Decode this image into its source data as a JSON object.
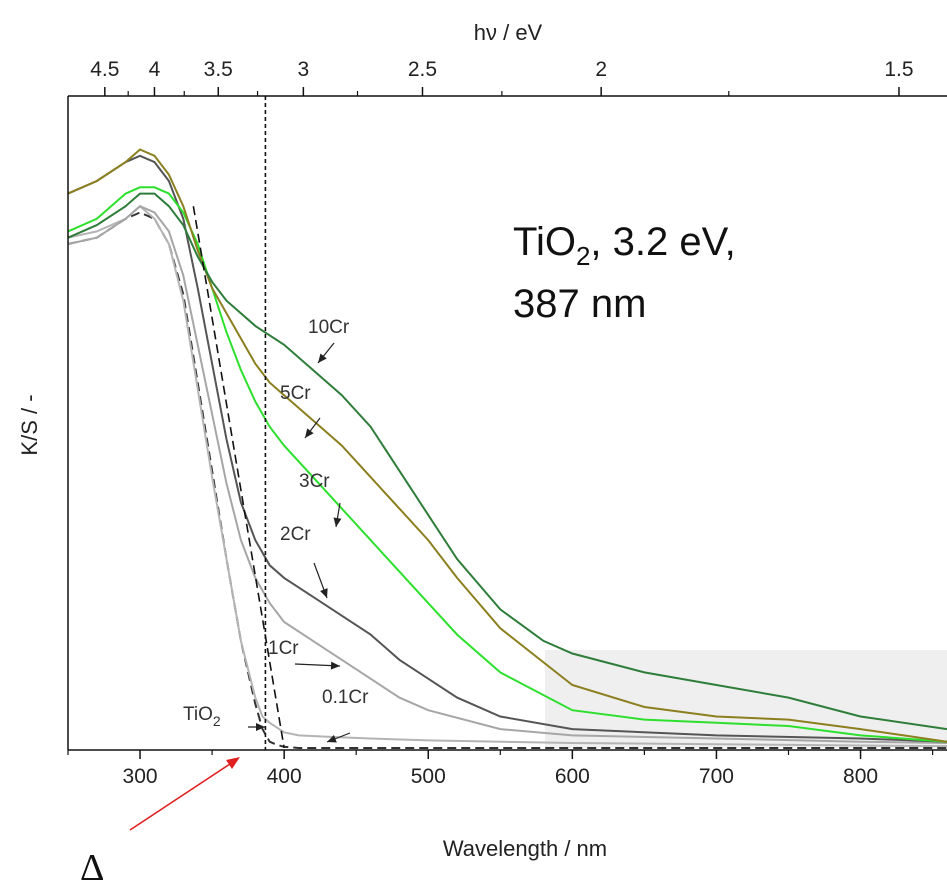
{
  "chart_data": {
    "type": "line",
    "title": "",
    "xlabel": "Wavelength / nm",
    "x2label": "hν / eV",
    "ylabel": "K/S / -",
    "xlim": [
      250,
      860
    ],
    "ylim": [
      0,
      1
    ],
    "x_ticks": [
      300,
      400,
      500,
      600,
      700,
      800
    ],
    "x2_ticks": [
      {
        "label": "4.5",
        "ev": 4.5
      },
      {
        "label": "4",
        "ev": 4.0
      },
      {
        "label": "3.5",
        "ev": 3.5
      },
      {
        "label": "3",
        "ev": 3.0
      },
      {
        "label": "2.5",
        "ev": 2.5
      },
      {
        "label": "2",
        "ev": 2.0
      },
      {
        "label": "1.5",
        "ev": 1.5
      }
    ],
    "y_ticks_shown": false,
    "series": [
      {
        "name": "TiO2",
        "color": "#333333",
        "dash": true,
        "x": [
          250,
          270,
          290,
          300,
          310,
          320,
          330,
          340,
          350,
          360,
          370,
          380,
          385,
          390,
          395,
          400,
          410,
          450,
          500,
          600,
          860
        ],
        "y": [
          0.8,
          0.81,
          0.84,
          0.85,
          0.84,
          0.8,
          0.72,
          0.58,
          0.44,
          0.3,
          0.17,
          0.07,
          0.03,
          0.01,
          0.005,
          0.002,
          0,
          0,
          0,
          0,
          0
        ]
      },
      {
        "name": "0.1Cr",
        "color": "#b4b4b4",
        "dash": false,
        "x": [
          250,
          270,
          290,
          300,
          310,
          320,
          330,
          340,
          350,
          360,
          370,
          380,
          385,
          390,
          400,
          410,
          430,
          460,
          500,
          600,
          700,
          800,
          860
        ],
        "y": [
          0.81,
          0.82,
          0.84,
          0.86,
          0.84,
          0.8,
          0.71,
          0.57,
          0.43,
          0.3,
          0.17,
          0.08,
          0.05,
          0.04,
          0.025,
          0.02,
          0.018,
          0.015,
          0.012,
          0.008,
          0.006,
          0.004,
          0.003
        ]
      },
      {
        "name": "1Cr",
        "color": "#a6a6a6",
        "dash": false,
        "x": [
          250,
          270,
          290,
          300,
          310,
          320,
          330,
          340,
          350,
          360,
          370,
          380,
          390,
          400,
          420,
          440,
          460,
          480,
          500,
          550,
          600,
          700,
          800,
          860
        ],
        "y": [
          0.8,
          0.81,
          0.84,
          0.86,
          0.85,
          0.82,
          0.75,
          0.64,
          0.53,
          0.42,
          0.33,
          0.27,
          0.23,
          0.2,
          0.17,
          0.14,
          0.11,
          0.08,
          0.06,
          0.03,
          0.02,
          0.015,
          0.01,
          0.008
        ]
      },
      {
        "name": "2Cr",
        "color": "#555555",
        "dash": false,
        "x": [
          250,
          270,
          290,
          300,
          310,
          320,
          330,
          340,
          350,
          360,
          370,
          380,
          390,
          400,
          420,
          440,
          460,
          480,
          500,
          520,
          550,
          600,
          700,
          800,
          860
        ],
        "y": [
          0.88,
          0.9,
          0.93,
          0.94,
          0.93,
          0.9,
          0.84,
          0.73,
          0.61,
          0.49,
          0.39,
          0.33,
          0.29,
          0.27,
          0.24,
          0.21,
          0.18,
          0.14,
          0.11,
          0.08,
          0.05,
          0.03,
          0.02,
          0.015,
          0.01
        ]
      },
      {
        "name": "3Cr",
        "color": "#2ee02e",
        "dash": false,
        "x": [
          250,
          270,
          290,
          300,
          310,
          320,
          330,
          340,
          350,
          360,
          370,
          380,
          390,
          400,
          420,
          440,
          460,
          480,
          500,
          520,
          550,
          600,
          650,
          700,
          750,
          800,
          860
        ],
        "y": [
          0.82,
          0.84,
          0.88,
          0.89,
          0.89,
          0.88,
          0.85,
          0.8,
          0.73,
          0.66,
          0.6,
          0.55,
          0.51,
          0.48,
          0.43,
          0.38,
          0.33,
          0.28,
          0.23,
          0.18,
          0.12,
          0.06,
          0.045,
          0.04,
          0.035,
          0.02,
          0.01
        ]
      },
      {
        "name": "5Cr",
        "color": "#8b7f1f",
        "dash": false,
        "x": [
          250,
          270,
          290,
          300,
          310,
          320,
          330,
          340,
          350,
          360,
          370,
          380,
          390,
          400,
          420,
          440,
          460,
          480,
          500,
          520,
          550,
          600,
          650,
          700,
          750,
          800,
          830,
          860
        ],
        "y": [
          0.88,
          0.9,
          0.93,
          0.95,
          0.94,
          0.91,
          0.86,
          0.79,
          0.73,
          0.69,
          0.65,
          0.61,
          0.58,
          0.56,
          0.52,
          0.48,
          0.43,
          0.38,
          0.33,
          0.27,
          0.19,
          0.1,
          0.065,
          0.05,
          0.045,
          0.03,
          0.02,
          0.01
        ]
      },
      {
        "name": "10Cr",
        "color": "#2f7d3a",
        "dash": false,
        "x": [
          250,
          270,
          290,
          300,
          310,
          320,
          330,
          340,
          350,
          360,
          380,
          400,
          420,
          440,
          460,
          480,
          500,
          520,
          550,
          580,
          600,
          650,
          700,
          750,
          800,
          860
        ],
        "y": [
          0.81,
          0.83,
          0.86,
          0.88,
          0.88,
          0.86,
          0.83,
          0.78,
          0.74,
          0.71,
          0.67,
          0.64,
          0.6,
          0.56,
          0.51,
          0.44,
          0.37,
          0.3,
          0.22,
          0.17,
          0.15,
          0.12,
          0.1,
          0.08,
          0.05,
          0.03
        ]
      }
    ],
    "vline_nm": 387,
    "tangent_line": {
      "x": [
        337,
        400
      ],
      "y": [
        0.86,
        0
      ]
    },
    "annotations": {
      "note_line1_main": "TiO",
      "note_line1_sub": "2",
      "note_line1_rest": ", 3.2 eV,",
      "note_line2": "387 nm",
      "delta_label": "Δ"
    },
    "curve_labels": [
      {
        "text": "10Cr",
        "series": "10Cr"
      },
      {
        "text": "5Cr",
        "series": "5Cr"
      },
      {
        "text": "3Cr",
        "series": "3Cr"
      },
      {
        "text": "2Cr",
        "series": "2Cr"
      },
      {
        "text": "1Cr",
        "series": "1Cr"
      },
      {
        "text": "0.1Cr",
        "series": "0.1Cr"
      },
      {
        "text": "TiO",
        "sub": "2",
        "series": "TiO2"
      }
    ],
    "grid": false,
    "legend": "none"
  }
}
